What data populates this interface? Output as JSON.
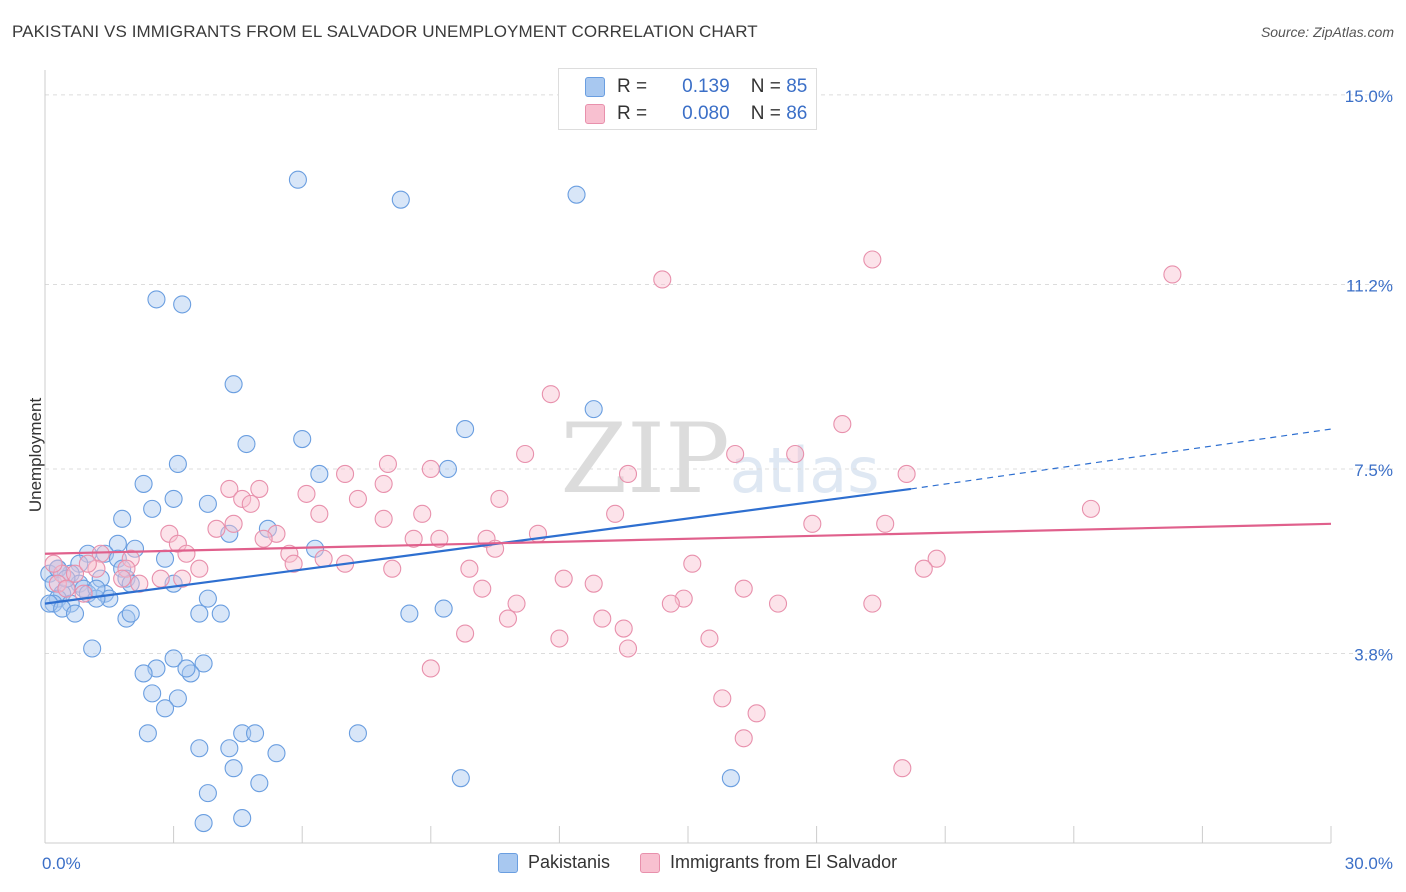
{
  "title": "PAKISTANI VS IMMIGRANTS FROM EL SALVADOR UNEMPLOYMENT CORRELATION CHART",
  "source": "Source: ZipAtlas.com",
  "watermark": "ZIPatlas",
  "stats": [
    {
      "r_label": "R =",
      "r_value": "0.139",
      "n_label": "N =",
      "n_value": "85",
      "color": "#a8c8f0",
      "border": "#6a9ee0"
    },
    {
      "r_label": "R =",
      "r_value": "0.080",
      "n_label": "N =",
      "n_value": "86",
      "color": "#f8c0d0",
      "border": "#e890ac"
    }
  ],
  "legend": [
    {
      "label": "Pakistanis",
      "color": "#a8c8f0",
      "border": "#6a9ee0"
    },
    {
      "label": "Immigrants from El Salvador",
      "color": "#f8c0d0",
      "border": "#e890ac"
    }
  ],
  "chart_data": {
    "type": "scatter",
    "title": "PAKISTANI VS IMMIGRANTS FROM EL SALVADOR UNEMPLOYMENT CORRELATION CHART",
    "xlabel": "",
    "ylabel": "Unemployment",
    "xlim": [
      0,
      30
    ],
    "ylim": [
      0,
      15.5
    ],
    "x_tick_labels": [
      {
        "value": 0,
        "label": "0.0%"
      },
      {
        "value": 30,
        "label": "30.0%"
      }
    ],
    "y_tick_labels": [
      {
        "value": 3.8,
        "label": "3.8%"
      },
      {
        "value": 7.5,
        "label": "7.5%"
      },
      {
        "value": 11.2,
        "label": "11.2%"
      },
      {
        "value": 15.0,
        "label": "15.0%"
      }
    ],
    "series": [
      {
        "name": "Pakistanis",
        "color": "#6a9ee0",
        "fill": "rgba(168,200,240,0.45)",
        "trend": {
          "x0": 0,
          "y0": 4.8,
          "x1": 20.2,
          "y1": 7.1,
          "dash_to_x": 30,
          "dash_to_y": 8.3,
          "color": "#2e6fd0"
        },
        "points": [
          [
            5.9,
            13.3
          ],
          [
            8.3,
            12.9
          ],
          [
            12.4,
            13.0
          ],
          [
            2.6,
            10.9
          ],
          [
            3.2,
            10.8
          ],
          [
            4.4,
            9.2
          ],
          [
            12.8,
            8.7
          ],
          [
            9.8,
            8.3
          ],
          [
            4.7,
            8.0
          ],
          [
            6.0,
            8.1
          ],
          [
            3.1,
            7.6
          ],
          [
            6.4,
            7.4
          ],
          [
            9.4,
            7.5
          ],
          [
            2.3,
            7.2
          ],
          [
            3.0,
            6.9
          ],
          [
            3.8,
            6.8
          ],
          [
            2.5,
            6.7
          ],
          [
            1.8,
            6.5
          ],
          [
            5.2,
            6.3
          ],
          [
            4.3,
            6.2
          ],
          [
            6.3,
            5.9
          ],
          [
            1.7,
            6.0
          ],
          [
            2.1,
            5.9
          ],
          [
            1.0,
            5.8
          ],
          [
            1.4,
            5.8
          ],
          [
            2.8,
            5.7
          ],
          [
            1.7,
            5.7
          ],
          [
            0.8,
            5.6
          ],
          [
            1.8,
            5.5
          ],
          [
            0.3,
            5.5
          ],
          [
            0.1,
            5.4
          ],
          [
            0.6,
            5.4
          ],
          [
            1.3,
            5.3
          ],
          [
            1.9,
            5.3
          ],
          [
            0.2,
            5.2
          ],
          [
            0.8,
            5.2
          ],
          [
            2.0,
            5.2
          ],
          [
            3.0,
            5.2
          ],
          [
            0.5,
            5.1
          ],
          [
            0.9,
            5.1
          ],
          [
            1.0,
            5.0
          ],
          [
            0.4,
            5.0
          ],
          [
            1.4,
            5.0
          ],
          [
            1.5,
            4.9
          ],
          [
            0.3,
            4.9
          ],
          [
            0.6,
            4.8
          ],
          [
            1.2,
            4.9
          ],
          [
            0.2,
            4.8
          ],
          [
            0.1,
            4.8
          ],
          [
            0.4,
            4.7
          ],
          [
            0.7,
            4.6
          ],
          [
            1.9,
            4.5
          ],
          [
            2.0,
            4.6
          ],
          [
            3.6,
            4.6
          ],
          [
            4.1,
            4.6
          ],
          [
            3.8,
            4.9
          ],
          [
            8.5,
            4.6
          ],
          [
            9.3,
            4.7
          ],
          [
            1.1,
            3.9
          ],
          [
            3.0,
            3.7
          ],
          [
            3.7,
            3.6
          ],
          [
            2.6,
            3.5
          ],
          [
            3.4,
            3.4
          ],
          [
            3.3,
            3.5
          ],
          [
            2.3,
            3.4
          ],
          [
            2.5,
            3.0
          ],
          [
            3.1,
            2.9
          ],
          [
            2.8,
            2.7
          ],
          [
            4.6,
            2.2
          ],
          [
            4.9,
            2.2
          ],
          [
            7.3,
            2.2
          ],
          [
            2.4,
            2.2
          ],
          [
            3.6,
            1.9
          ],
          [
            4.3,
            1.9
          ],
          [
            5.4,
            1.8
          ],
          [
            4.4,
            1.5
          ],
          [
            5.0,
            1.2
          ],
          [
            9.7,
            1.3
          ],
          [
            16.0,
            1.3
          ],
          [
            3.8,
            1.0
          ],
          [
            4.6,
            0.5
          ],
          [
            3.7,
            0.4
          ],
          [
            0.3,
            5.5
          ],
          [
            0.5,
            5.3
          ],
          [
            1.2,
            5.1
          ]
        ]
      },
      {
        "name": "Immigrants from El Salvador",
        "color": "#e890ac",
        "fill": "rgba(248,192,208,0.45)",
        "trend": {
          "x0": 0,
          "y0": 5.8,
          "x1": 30,
          "y1": 6.4,
          "color": "#e0608c"
        },
        "points": [
          [
            19.3,
            11.7
          ],
          [
            14.4,
            11.3
          ],
          [
            26.3,
            11.4
          ],
          [
            11.8,
            9.0
          ],
          [
            18.6,
            8.4
          ],
          [
            11.2,
            7.8
          ],
          [
            16.1,
            7.8
          ],
          [
            17.5,
            7.8
          ],
          [
            8.0,
            7.6
          ],
          [
            20.1,
            7.4
          ],
          [
            13.6,
            7.4
          ],
          [
            9.0,
            7.5
          ],
          [
            7.0,
            7.4
          ],
          [
            7.9,
            7.2
          ],
          [
            4.3,
            7.1
          ],
          [
            5.0,
            7.1
          ],
          [
            6.1,
            7.0
          ],
          [
            7.3,
            6.9
          ],
          [
            10.6,
            6.9
          ],
          [
            4.6,
            6.9
          ],
          [
            4.8,
            6.8
          ],
          [
            24.4,
            6.7
          ],
          [
            8.8,
            6.6
          ],
          [
            6.4,
            6.6
          ],
          [
            7.9,
            6.5
          ],
          [
            13.3,
            6.6
          ],
          [
            4.4,
            6.4
          ],
          [
            4.0,
            6.3
          ],
          [
            17.9,
            6.4
          ],
          [
            19.6,
            6.4
          ],
          [
            11.5,
            6.2
          ],
          [
            2.9,
            6.2
          ],
          [
            5.4,
            6.2
          ],
          [
            9.2,
            6.1
          ],
          [
            8.6,
            6.1
          ],
          [
            3.1,
            6.0
          ],
          [
            5.1,
            6.1
          ],
          [
            10.3,
            6.1
          ],
          [
            10.5,
            5.9
          ],
          [
            5.7,
            5.8
          ],
          [
            3.3,
            5.8
          ],
          [
            1.3,
            5.8
          ],
          [
            6.5,
            5.7
          ],
          [
            2.0,
            5.7
          ],
          [
            7.0,
            5.6
          ],
          [
            20.8,
            5.7
          ],
          [
            15.1,
            5.6
          ],
          [
            5.8,
            5.6
          ],
          [
            3.6,
            5.5
          ],
          [
            8.1,
            5.5
          ],
          [
            9.9,
            5.5
          ],
          [
            1.2,
            5.5
          ],
          [
            1.9,
            5.5
          ],
          [
            0.4,
            5.4
          ],
          [
            0.7,
            5.4
          ],
          [
            1.8,
            5.3
          ],
          [
            2.7,
            5.3
          ],
          [
            3.2,
            5.3
          ],
          [
            0.3,
            5.2
          ],
          [
            20.5,
            5.5
          ],
          [
            12.1,
            5.3
          ],
          [
            2.2,
            5.2
          ],
          [
            0.5,
            5.1
          ],
          [
            12.8,
            5.2
          ],
          [
            10.2,
            5.1
          ],
          [
            16.3,
            5.1
          ],
          [
            0.9,
            5.0
          ],
          [
            14.9,
            4.9
          ],
          [
            17.1,
            4.8
          ],
          [
            19.3,
            4.8
          ],
          [
            14.6,
            4.8
          ],
          [
            11.0,
            4.8
          ],
          [
            10.8,
            4.5
          ],
          [
            13.0,
            4.5
          ],
          [
            13.5,
            4.3
          ],
          [
            9.8,
            4.2
          ],
          [
            12.0,
            4.1
          ],
          [
            15.5,
            4.1
          ],
          [
            13.6,
            3.9
          ],
          [
            9.0,
            3.5
          ],
          [
            15.8,
            2.9
          ],
          [
            16.6,
            2.6
          ],
          [
            16.3,
            2.1
          ],
          [
            20.0,
            1.5
          ],
          [
            0.2,
            5.6
          ],
          [
            1.0,
            5.6
          ]
        ]
      }
    ]
  }
}
